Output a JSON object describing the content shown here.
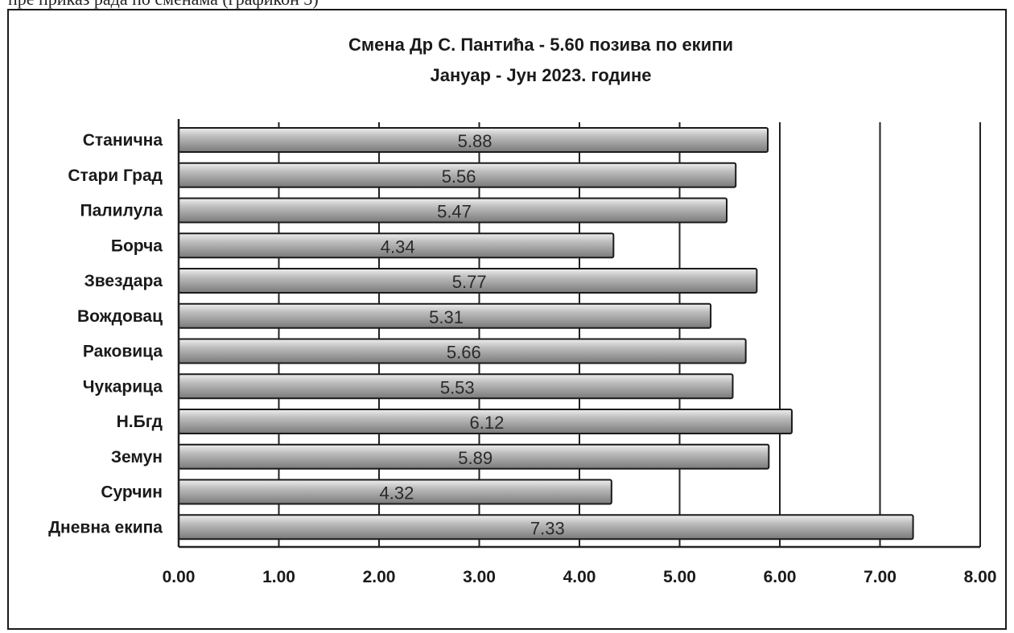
{
  "header_fragment": "пре приказ рада по сменама (графикон 3)",
  "chart_data": {
    "type": "bar",
    "orientation": "horizontal",
    "title": "Смена Др С. Пантића - 5.60 позива по екипи",
    "subtitle": "Јануар - Јун 2023. године",
    "categories": [
      "Станична",
      "Стари Град",
      "Палилула",
      "Борча",
      "Звездара",
      "Вождовац",
      "Раковица",
      "Чукарица",
      "Н.Бгд",
      "Земун",
      "Сурчин",
      "Дневна екипа"
    ],
    "values": [
      5.88,
      5.56,
      5.47,
      4.34,
      5.77,
      5.31,
      5.66,
      5.53,
      6.12,
      5.89,
      4.32,
      7.33
    ],
    "value_labels": [
      "5.88",
      "5.56",
      "5.47",
      "4.34",
      "5.77",
      "5.31",
      "5.66",
      "5.53",
      "6.12",
      "5.89",
      "4.32",
      "7.33"
    ],
    "x_ticks": [
      "0.00",
      "1.00",
      "2.00",
      "3.00",
      "4.00",
      "5.00",
      "6.00",
      "7.00",
      "8.00"
    ],
    "xlim": [
      0,
      8
    ],
    "grid": true,
    "bar_color": "#bdbdbd",
    "bar_highlight": "#efefef",
    "bar_shadow": "#7a7a7a"
  }
}
